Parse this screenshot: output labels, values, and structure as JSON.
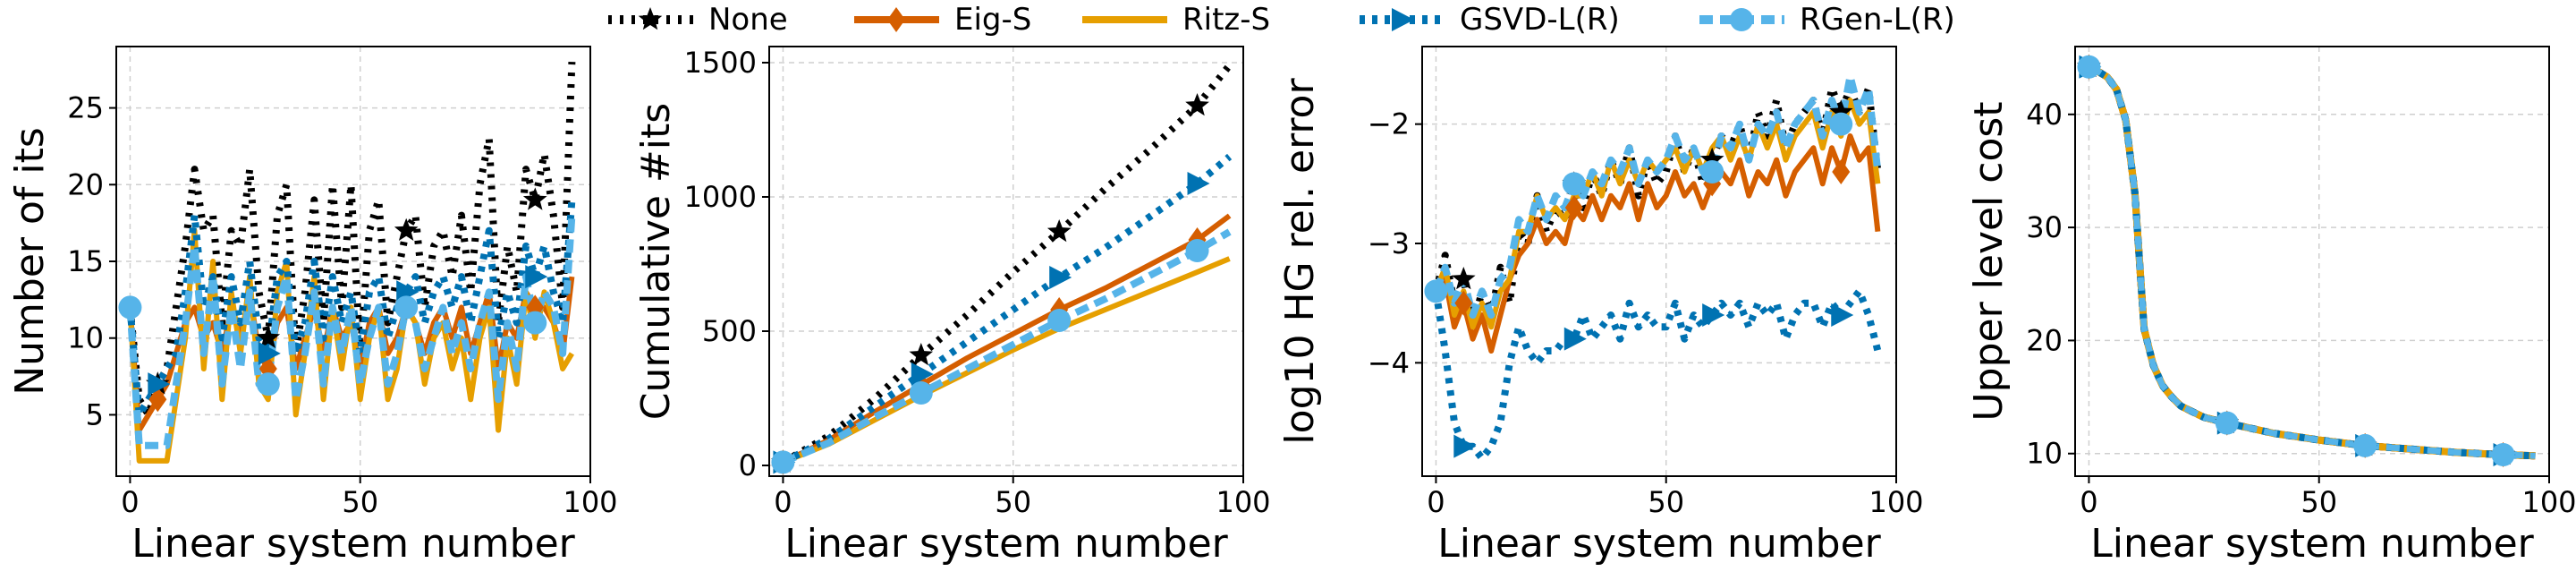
{
  "legend": [
    {
      "name": "None",
      "color": "#000000",
      "marker": "star",
      "dash": "dot"
    },
    {
      "name": "Eig-S",
      "color": "#D55E00",
      "marker": "diamond",
      "dash": "solid"
    },
    {
      "name": "Ritz-S",
      "color": "#E69F00",
      "marker": "none",
      "dash": "solid"
    },
    {
      "name": "GSVD-L(R)",
      "color": "#0072B2",
      "marker": "triangle-right",
      "dash": "dot"
    },
    {
      "name": "RGen-L(R)",
      "color": "#56B4E9",
      "marker": "circle",
      "dash": "dash"
    }
  ],
  "chart_data": [
    {
      "type": "line",
      "xlabel": "Linear system number",
      "ylabel": "Number of its",
      "xlim": [
        -3,
        100
      ],
      "ylim": [
        1,
        29
      ],
      "xticks": [
        0,
        50,
        100
      ],
      "yticks": [
        5,
        10,
        15,
        20,
        25
      ],
      "grid": true,
      "x": [
        0,
        2,
        4,
        6,
        8,
        10,
        12,
        14,
        16,
        18,
        20,
        22,
        24,
        26,
        28,
        30,
        32,
        34,
        36,
        38,
        40,
        42,
        44,
        46,
        48,
        50,
        52,
        54,
        56,
        58,
        60,
        62,
        64,
        66,
        68,
        70,
        72,
        74,
        76,
        78,
        80,
        82,
        84,
        86,
        88,
        90,
        92,
        94,
        96
      ],
      "series": [
        {
          "name": "None",
          "values": [
            12,
            6,
            5,
            7,
            8,
            12,
            16,
            21,
            17,
            18,
            11,
            17,
            16,
            21,
            13,
            10,
            18,
            20,
            9,
            13,
            19,
            11,
            20,
            12,
            20,
            9,
            17,
            19,
            11,
            14,
            17,
            18,
            12,
            16,
            17,
            14,
            18,
            13,
            20,
            23,
            11,
            16,
            13,
            21,
            19,
            22,
            18,
            12,
            28
          ]
        },
        {
          "name": "Eig-S",
          "values": [
            12,
            4,
            5,
            6,
            7,
            9,
            11,
            12,
            10,
            11,
            9,
            12,
            10,
            13,
            9,
            8,
            11,
            12,
            8,
            10,
            12,
            9,
            12,
            10,
            11,
            8,
            11,
            12,
            9,
            10,
            12,
            11,
            9,
            11,
            12,
            10,
            12,
            9,
            11,
            13,
            8,
            11,
            10,
            13,
            12,
            12,
            11,
            9,
            14
          ]
        },
        {
          "name": "Ritz-S",
          "values": [
            12,
            2,
            2,
            2,
            2,
            6,
            10,
            17,
            8,
            15,
            6,
            13,
            9,
            14,
            7,
            6,
            13,
            15,
            5,
            9,
            14,
            6,
            12,
            8,
            12,
            6,
            10,
            12,
            6,
            8,
            12,
            11,
            7,
            10,
            11,
            8,
            10,
            6,
            10,
            12,
            4,
            10,
            7,
            13,
            10,
            13,
            11,
            8,
            9
          ]
        },
        {
          "name": "GSVD-L(R)",
          "values": [
            12,
            5,
            6,
            7,
            8,
            9,
            13,
            18,
            12,
            14,
            10,
            14,
            11,
            15,
            10,
            9,
            14,
            15,
            9,
            11,
            15,
            10,
            14,
            11,
            13,
            9,
            13,
            14,
            10,
            12,
            13,
            14,
            11,
            13,
            14,
            12,
            14,
            11,
            14,
            17,
            10,
            13,
            11,
            16,
            14,
            16,
            13,
            11,
            19
          ]
        },
        {
          "name": "RGen-L(R)",
          "values": [
            12,
            3,
            3,
            3,
            3,
            7,
            11,
            16,
            9,
            14,
            7,
            12,
            8,
            13,
            7,
            7,
            12,
            14,
            6,
            9,
            13,
            7,
            12,
            9,
            12,
            7,
            10,
            12,
            7,
            9,
            12,
            11,
            8,
            10,
            12,
            9,
            11,
            8,
            11,
            13,
            6,
            11,
            8,
            14,
            11,
            13,
            12,
            9,
            18
          ]
        }
      ]
    },
    {
      "type": "line",
      "xlabel": "Linear system number",
      "ylabel": "Cumulative #its",
      "xlim": [
        -3,
        100
      ],
      "ylim": [
        -40,
        1560
      ],
      "xticks": [
        0,
        50,
        100
      ],
      "yticks": [
        0,
        500,
        1000,
        1500
      ],
      "grid": true,
      "x": [
        0,
        10,
        20,
        30,
        40,
        50,
        60,
        70,
        80,
        90,
        97
      ],
      "series": [
        {
          "name": "None",
          "values": [
            12,
            110,
            250,
            410,
            560,
            720,
            870,
            1030,
            1180,
            1340,
            1490
          ]
        },
        {
          "name": "Eig-S",
          "values": [
            12,
            95,
            200,
            300,
            400,
            490,
            580,
            660,
            750,
            840,
            930
          ]
        },
        {
          "name": "Ritz-S",
          "values": [
            12,
            80,
            170,
            260,
            345,
            430,
            510,
            580,
            650,
            720,
            770
          ]
        },
        {
          "name": "GSVD-L(R)",
          "values": [
            12,
            100,
            220,
            340,
            460,
            580,
            700,
            810,
            930,
            1050,
            1150
          ]
        },
        {
          "name": "RGen-L(R)",
          "values": [
            12,
            85,
            180,
            270,
            360,
            450,
            540,
            620,
            710,
            800,
            870
          ]
        }
      ]
    },
    {
      "type": "line",
      "xlabel": "Linear system number",
      "ylabel": "log10 HG rel. error",
      "xlim": [
        -3,
        100
      ],
      "ylim": [
        -4.95,
        -1.35
      ],
      "xticks": [
        0,
        50,
        100
      ],
      "yticks": [
        -4,
        -3,
        -2
      ],
      "grid": true,
      "x": [
        0,
        2,
        4,
        6,
        8,
        10,
        12,
        14,
        16,
        18,
        20,
        22,
        24,
        26,
        28,
        30,
        32,
        34,
        36,
        38,
        40,
        42,
        44,
        46,
        48,
        50,
        52,
        54,
        56,
        58,
        60,
        62,
        64,
        66,
        68,
        70,
        72,
        74,
        76,
        78,
        80,
        82,
        84,
        86,
        88,
        90,
        92,
        94,
        96
      ],
      "series": [
        {
          "name": "None",
          "values": [
            -3.4,
            -3.1,
            -3.5,
            -3.3,
            -3.7,
            -3.4,
            -3.6,
            -3.2,
            -3.5,
            -2.9,
            -3.0,
            -2.6,
            -2.9,
            -2.7,
            -2.8,
            -2.5,
            -2.7,
            -2.4,
            -2.6,
            -2.3,
            -2.5,
            -2.2,
            -2.6,
            -2.3,
            -2.5,
            -2.4,
            -2.1,
            -2.4,
            -2.2,
            -2.5,
            -2.3,
            -2.1,
            -2.2,
            -2.0,
            -2.3,
            -1.9,
            -2.1,
            -1.8,
            -2.2,
            -2.0,
            -1.9,
            -1.8,
            -2.1,
            -1.7,
            -1.9,
            -1.7,
            -1.9,
            -1.7,
            -2.4
          ]
        },
        {
          "name": "Eig-S",
          "values": [
            -3.4,
            -3.3,
            -3.7,
            -3.5,
            -3.8,
            -3.6,
            -3.9,
            -3.6,
            -3.3,
            -3.1,
            -3.0,
            -2.8,
            -3.0,
            -2.9,
            -3.0,
            -2.7,
            -2.8,
            -2.6,
            -2.8,
            -2.6,
            -2.7,
            -2.5,
            -2.8,
            -2.5,
            -2.7,
            -2.6,
            -2.4,
            -2.6,
            -2.5,
            -2.7,
            -2.5,
            -2.4,
            -2.5,
            -2.3,
            -2.6,
            -2.4,
            -2.5,
            -2.3,
            -2.6,
            -2.4,
            -2.3,
            -2.2,
            -2.5,
            -2.2,
            -2.4,
            -2.1,
            -2.3,
            -2.2,
            -2.9
          ]
        },
        {
          "name": "Ritz-S",
          "values": [
            -3.4,
            -3.2,
            -3.6,
            -3.4,
            -3.7,
            -3.5,
            -3.7,
            -3.4,
            -3.3,
            -2.9,
            -2.9,
            -2.6,
            -2.8,
            -2.7,
            -2.8,
            -2.6,
            -2.6,
            -2.4,
            -2.6,
            -2.3,
            -2.5,
            -2.3,
            -2.5,
            -2.3,
            -2.4,
            -2.3,
            -2.2,
            -2.4,
            -2.2,
            -2.4,
            -2.2,
            -2.1,
            -2.3,
            -2.1,
            -2.3,
            -2.0,
            -2.2,
            -2.0,
            -2.3,
            -2.1,
            -2.0,
            -1.9,
            -2.2,
            -1.9,
            -2.1,
            -1.8,
            -2.0,
            -1.9,
            -2.5
          ]
        },
        {
          "name": "GSVD-L(R)",
          "values": [
            -3.4,
            -3.9,
            -4.5,
            -4.7,
            -4.7,
            -4.8,
            -4.7,
            -4.5,
            -4.0,
            -3.7,
            -3.9,
            -4.0,
            -3.9,
            -3.9,
            -3.8,
            -3.8,
            -3.6,
            -3.8,
            -3.7,
            -3.6,
            -3.8,
            -3.5,
            -3.7,
            -3.6,
            -3.7,
            -3.7,
            -3.5,
            -3.8,
            -3.6,
            -3.7,
            -3.6,
            -3.5,
            -3.6,
            -3.5,
            -3.7,
            -3.5,
            -3.6,
            -3.5,
            -3.8,
            -3.6,
            -3.5,
            -3.5,
            -3.7,
            -3.5,
            -3.6,
            -3.5,
            -3.4,
            -3.6,
            -3.9
          ]
        },
        {
          "name": "RGen-L(R)",
          "values": [
            -3.4,
            -3.2,
            -3.5,
            -3.3,
            -3.6,
            -3.4,
            -3.6,
            -3.3,
            -3.2,
            -2.8,
            -2.9,
            -2.6,
            -2.8,
            -2.6,
            -2.7,
            -2.5,
            -2.6,
            -2.4,
            -2.5,
            -2.3,
            -2.4,
            -2.2,
            -2.5,
            -2.3,
            -2.4,
            -2.3,
            -2.1,
            -2.3,
            -2.2,
            -2.4,
            -2.4,
            -2.1,
            -2.2,
            -2.0,
            -2.3,
            -2.0,
            -2.1,
            -1.9,
            -2.2,
            -2.0,
            -1.9,
            -1.8,
            -2.1,
            -1.8,
            -2.0,
            -1.6,
            -1.9,
            -1.7,
            -2.4
          ]
        }
      ]
    },
    {
      "type": "line",
      "xlabel": "Linear system number",
      "ylabel": "Upper level cost",
      "xlim": [
        -3,
        100
      ],
      "ylim": [
        8,
        46
      ],
      "xticks": [
        0,
        50,
        100
      ],
      "yticks": [
        10,
        20,
        30,
        40
      ],
      "grid": true,
      "x": [
        0,
        2,
        4,
        6,
        8,
        10,
        11,
        12,
        14,
        16,
        18,
        20,
        25,
        30,
        40,
        50,
        60,
        70,
        80,
        90,
        97
      ],
      "series": [
        {
          "name": "None",
          "values": [
            44.2,
            43.8,
            43.3,
            42.2,
            39.5,
            33.0,
            27.0,
            21.0,
            17.8,
            16.0,
            15.0,
            14.2,
            13.2,
            12.7,
            11.8,
            11.2,
            10.7,
            10.4,
            10.1,
            9.9,
            9.8
          ]
        },
        {
          "name": "Eig-S",
          "values": [
            44.2,
            43.8,
            43.3,
            42.2,
            39.5,
            33.0,
            27.0,
            21.0,
            17.8,
            16.0,
            15.0,
            14.2,
            13.2,
            12.7,
            11.8,
            11.2,
            10.7,
            10.4,
            10.1,
            9.9,
            9.8
          ]
        },
        {
          "name": "Ritz-S",
          "values": [
            44.2,
            43.8,
            43.3,
            42.2,
            39.5,
            33.0,
            27.0,
            21.0,
            17.8,
            16.0,
            15.0,
            14.2,
            13.2,
            12.7,
            11.8,
            11.2,
            10.7,
            10.4,
            10.1,
            9.9,
            9.8
          ]
        },
        {
          "name": "GSVD-L(R)",
          "values": [
            44.2,
            43.8,
            43.3,
            42.2,
            39.5,
            33.0,
            27.0,
            21.0,
            17.8,
            16.0,
            15.0,
            14.2,
            13.2,
            12.7,
            11.8,
            11.2,
            10.7,
            10.4,
            10.1,
            9.9,
            9.8
          ]
        },
        {
          "name": "RGen-L(R)",
          "values": [
            44.2,
            43.8,
            43.3,
            42.2,
            39.5,
            33.0,
            27.0,
            21.0,
            17.8,
            16.0,
            15.0,
            14.2,
            13.2,
            12.7,
            11.8,
            11.2,
            10.7,
            10.4,
            10.1,
            9.9,
            9.8
          ]
        }
      ]
    }
  ]
}
